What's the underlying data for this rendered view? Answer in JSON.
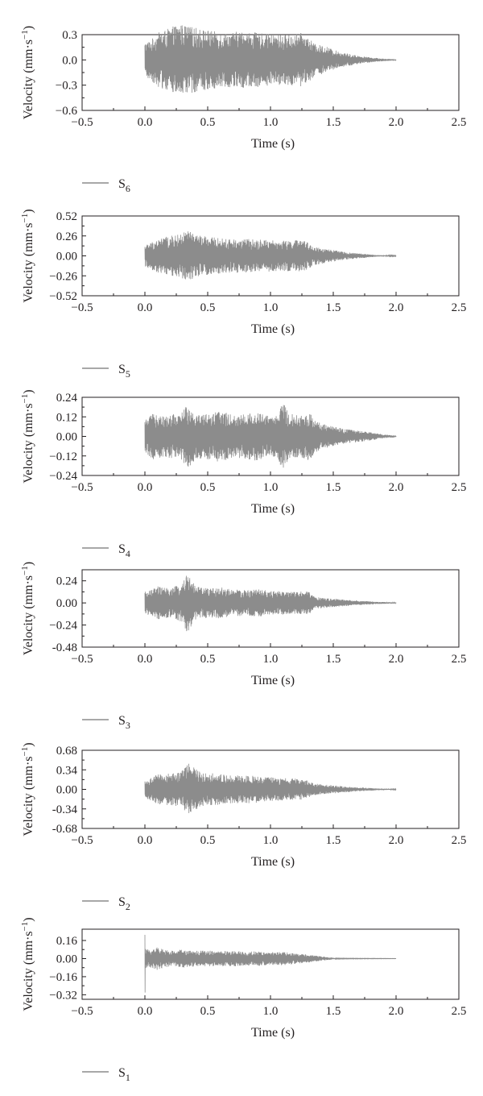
{
  "chart_data": [
    {
      "type": "line",
      "xlabel": "Time (s)",
      "ylabel": "Velocity (mm·s",
      "ylabel_sup": "−1",
      "ylabel_close": ")",
      "xlim": [
        -0.5,
        2.5
      ],
      "ylim": [
        -0.6,
        0.3
      ],
      "xticks": [
        "−0.5",
        "0.0",
        "0.5",
        "1.0",
        "1.5",
        "2.0",
        "2.5"
      ],
      "yticks": [
        {
          "value": 0.3,
          "label": "0.3"
        },
        {
          "value": 0.0,
          "label": "0.0"
        },
        {
          "value": -0.3,
          "label": "−0.3"
        },
        {
          "value": -0.6,
          "label": "−0.6"
        }
      ],
      "legend": {
        "base": "S",
        "sub": "6"
      },
      "series": [
        {
          "name": "S6",
          "color": "#8c8c8c",
          "envelope": {
            "t": [
              0,
              0.05,
              0.1,
              0.2,
              0.27,
              0.35,
              0.45,
              0.55,
              0.65,
              0.75,
              0.85,
              0.95,
              1.05,
              1.15,
              1.25,
              1.3,
              1.35,
              1.45,
              1.5,
              1.6,
              1.7,
              1.8,
              1.9,
              2.0
            ],
            "amp": [
              0.21,
              0.24,
              0.32,
              0.38,
              0.43,
              0.4,
              0.37,
              0.34,
              0.32,
              0.34,
              0.33,
              0.31,
              0.3,
              0.3,
              0.32,
              0.27,
              0.19,
              0.16,
              0.12,
              0.08,
              0.05,
              0.03,
              0.015,
              0.006
            ]
          }
        }
      ]
    },
    {
      "type": "line",
      "xlabel": "Time (s)",
      "ylabel": "Velocity (mm·s",
      "ylabel_sup": "−1",
      "ylabel_close": ")",
      "xlim": [
        -0.5,
        2.5
      ],
      "ylim": [
        -0.52,
        0.52
      ],
      "xticks": [
        "−0.5",
        "0.0",
        "0.5",
        "1.0",
        "1.5",
        "2.0",
        "2.5"
      ],
      "yticks": [
        {
          "value": 0.52,
          "label": "0.52"
        },
        {
          "value": 0.26,
          "label": "0.26"
        },
        {
          "value": 0.0,
          "label": "0.00"
        },
        {
          "value": -0.26,
          "label": "−0.26"
        },
        {
          "value": -0.52,
          "label": "−0.52"
        }
      ],
      "legend": {
        "base": "S",
        "sub": "5"
      },
      "series": [
        {
          "name": "S5",
          "color": "#8c8c8c",
          "envelope": {
            "t": [
              0,
              0.05,
              0.1,
              0.2,
              0.28,
              0.34,
              0.45,
              0.55,
              0.65,
              0.75,
              0.85,
              0.95,
              1.05,
              1.15,
              1.25,
              1.3,
              1.35,
              1.45,
              1.55,
              1.65,
              1.75,
              1.85,
              2.0
            ],
            "amp": [
              0.14,
              0.18,
              0.22,
              0.26,
              0.28,
              0.33,
              0.26,
              0.24,
              0.22,
              0.22,
              0.22,
              0.21,
              0.2,
              0.2,
              0.21,
              0.17,
              0.12,
              0.09,
              0.06,
              0.04,
              0.025,
              0.01,
              0.004
            ]
          }
        }
      ]
    },
    {
      "type": "line",
      "xlabel": "Time (s)",
      "ylabel": "Velocity (mm·s",
      "ylabel_sup": "−1",
      "ylabel_close": ")",
      "xlim": [
        -0.5,
        2.5
      ],
      "ylim": [
        -0.24,
        0.24
      ],
      "xticks": [
        "−0.5",
        "0.0",
        "0.5",
        "1.0",
        "1.5",
        "2.0",
        "2.5"
      ],
      "yticks": [
        {
          "value": 0.24,
          "label": "0.24"
        },
        {
          "value": 0.12,
          "label": "0.12"
        },
        {
          "value": 0.0,
          "label": "0.00"
        },
        {
          "value": -0.12,
          "label": "−0.12"
        },
        {
          "value": -0.24,
          "label": "−0.24"
        }
      ],
      "legend": {
        "base": "S",
        "sub": "4"
      },
      "series": [
        {
          "name": "S4",
          "color": "#8c8c8c",
          "envelope": {
            "t": [
              0,
              0.05,
              0.1,
              0.15,
              0.22,
              0.28,
              0.34,
              0.4,
              0.5,
              0.6,
              0.7,
              0.8,
              0.9,
              1.0,
              1.05,
              1.1,
              1.15,
              1.25,
              1.3,
              1.4,
              1.5,
              1.6,
              1.7,
              1.8,
              1.9,
              2.0
            ],
            "amp": [
              0.1,
              0.13,
              0.16,
              0.12,
              0.14,
              0.13,
              0.21,
              0.14,
              0.14,
              0.16,
              0.13,
              0.14,
              0.15,
              0.12,
              0.13,
              0.21,
              0.14,
              0.13,
              0.15,
              0.08,
              0.06,
              0.045,
              0.035,
              0.025,
              0.012,
              0.005
            ]
          }
        }
      ]
    },
    {
      "type": "line",
      "xlabel": "Time (s)",
      "ylabel": "Velocity (mm·s",
      "ylabel_sup": "−1",
      "ylabel_close": ")",
      "xlim": [
        -0.5,
        2.5
      ],
      "ylim": [
        -0.48,
        0.36
      ],
      "xticks": [
        "−0.5",
        "0.0",
        "0.5",
        "1.0",
        "1.5",
        "2.0",
        "2.5"
      ],
      "yticks": [
        {
          "value": 0.24,
          "label": "0.24"
        },
        {
          "value": 0.0,
          "label": "0.00"
        },
        {
          "value": -0.24,
          "label": "−0.24"
        },
        {
          "value": -0.48,
          "label": "-0.48"
        }
      ],
      "legend": {
        "base": "S",
        "sub": "3"
      },
      "series": [
        {
          "name": "S3",
          "color": "#8c8c8c",
          "envelope": {
            "t": [
              0,
              0.05,
              0.1,
              0.2,
              0.28,
              0.34,
              0.4,
              0.5,
              0.6,
              0.7,
              0.8,
              0.9,
              1.0,
              1.1,
              1.2,
              1.3,
              1.35,
              1.45,
              1.55,
              1.65,
              1.75,
              1.85,
              2.0
            ],
            "amp": [
              0.12,
              0.14,
              0.18,
              0.16,
              0.2,
              0.33,
              0.18,
              0.16,
              0.17,
              0.15,
              0.14,
              0.15,
              0.13,
              0.13,
              0.12,
              0.13,
              0.07,
              0.05,
              0.04,
              0.03,
              0.02,
              0.012,
              0.006
            ]
          }
        }
      ]
    },
    {
      "type": "line",
      "xlabel": "Time (s)",
      "ylabel": "Velocity (mm·s",
      "ylabel_sup": "−1",
      "ylabel_close": ")",
      "xlim": [
        -0.5,
        2.5
      ],
      "ylim": [
        -0.68,
        0.68
      ],
      "xticks": [
        "−0.5",
        "0.0",
        "0.5",
        "1.0",
        "1.5",
        "2.0",
        "2.5"
      ],
      "yticks": [
        {
          "value": 0.68,
          "label": "0.68"
        },
        {
          "value": 0.34,
          "label": "0.34"
        },
        {
          "value": 0.0,
          "label": "0.00"
        },
        {
          "value": -0.34,
          "label": "-0.34"
        },
        {
          "value": -0.68,
          "label": "-0.68"
        }
      ],
      "legend": {
        "base": "S",
        "sub": "2"
      },
      "series": [
        {
          "name": "S2",
          "color": "#8c8c8c",
          "envelope": {
            "t": [
              0,
              0.05,
              0.1,
              0.2,
              0.28,
              0.35,
              0.45,
              0.55,
              0.65,
              0.75,
              0.85,
              0.95,
              1.05,
              1.15,
              1.25,
              1.3,
              1.35,
              1.45,
              1.55,
              1.65,
              1.75,
              1.85,
              2.0
            ],
            "amp": [
              0.15,
              0.2,
              0.26,
              0.28,
              0.3,
              0.45,
              0.3,
              0.28,
              0.25,
              0.24,
              0.24,
              0.22,
              0.2,
              0.19,
              0.18,
              0.15,
              0.1,
              0.08,
              0.06,
              0.04,
              0.03,
              0.015,
              0.006
            ]
          }
        }
      ]
    },
    {
      "type": "line",
      "xlabel": "Time (s)",
      "ylabel": "Velocity (mm·s",
      "ylabel_sup": "−1",
      "ylabel_close": ")",
      "xlim": [
        -0.5,
        2.5
      ],
      "ylim": [
        -0.36,
        0.26
      ],
      "xticks": [
        "−0.5",
        "0.0",
        "0.5",
        "1.0",
        "1.5",
        "2.0",
        "2.5"
      ],
      "yticks": [
        {
          "value": 0.16,
          "label": "0.16"
        },
        {
          "value": 0.0,
          "label": "0.00"
        },
        {
          "value": -0.16,
          "label": "−0.16"
        },
        {
          "value": -0.32,
          "label": "−0.32"
        }
      ],
      "legend": {
        "base": "S",
        "sub": "1"
      },
      "series": [
        {
          "name": "S1",
          "color": "#8c8c8c",
          "spike": {
            "t": 0.0,
            "max": 0.21,
            "min": -0.3
          },
          "envelope": {
            "t": [
              0,
              0.01,
              0.05,
              0.1,
              0.2,
              0.3,
              0.4,
              0.5,
              0.6,
              0.7,
              0.8,
              0.9,
              1.0,
              1.1,
              1.2,
              1.3,
              1.4,
              1.48,
              1.52,
              1.6,
              2.0
            ],
            "amp": [
              0.1,
              0.08,
              0.09,
              0.1,
              0.07,
              0.08,
              0.07,
              0.07,
              0.065,
              0.07,
              0.06,
              0.065,
              0.055,
              0.06,
              0.045,
              0.035,
              0.02,
              0.01,
              0.003,
              0.002,
              0.001
            ]
          }
        }
      ]
    }
  ]
}
